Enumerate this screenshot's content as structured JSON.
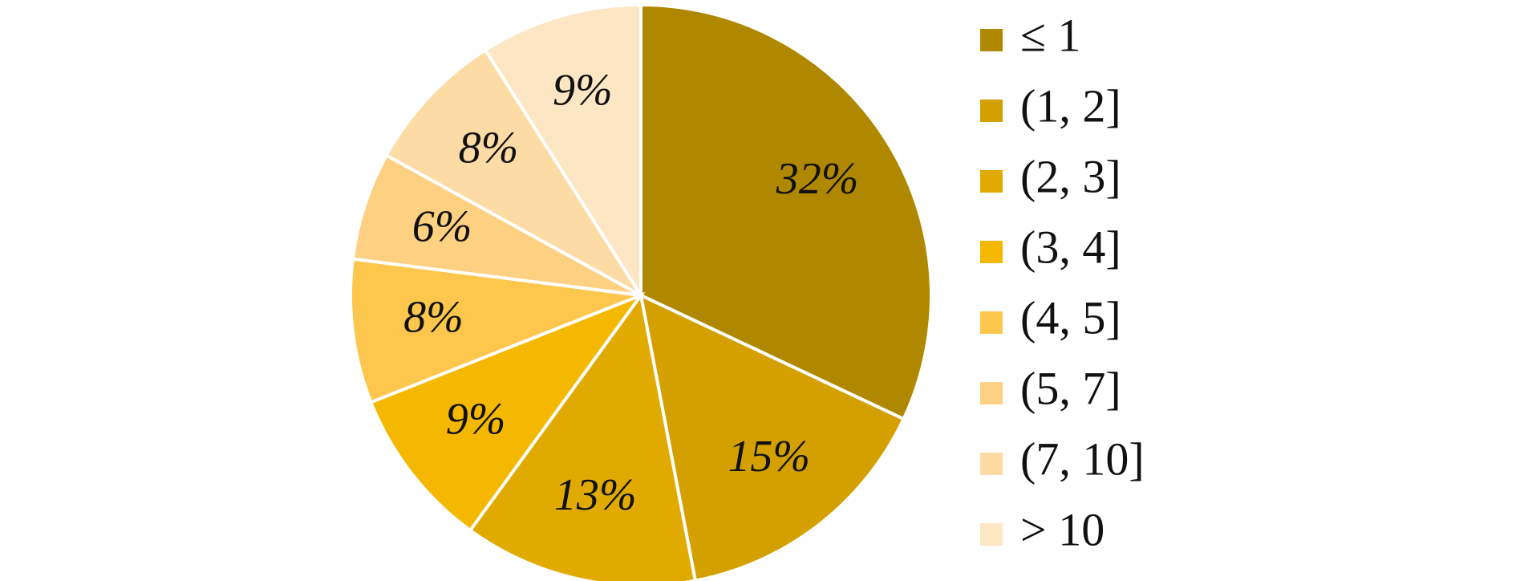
{
  "chart_data": {
    "type": "pie",
    "categories": [
      "≤ 1",
      "(1, 2]",
      "(2, 3]",
      "(3, 4]",
      "(4, 5]",
      "(5, 7]",
      "(7, 10]",
      "> 10"
    ],
    "values": [
      32,
      15,
      13,
      9,
      8,
      6,
      8,
      9
    ],
    "value_labels": [
      "32%",
      "15%",
      "13%",
      "9%",
      "8%",
      "6%",
      "8%",
      "9%"
    ],
    "colors": [
      "#b08800",
      "#d4a000",
      "#e0aa00",
      "#f5b800",
      "#fdc64c",
      "#fdd082",
      "#fddba4",
      "#fde6c4"
    ],
    "legend": "right"
  }
}
